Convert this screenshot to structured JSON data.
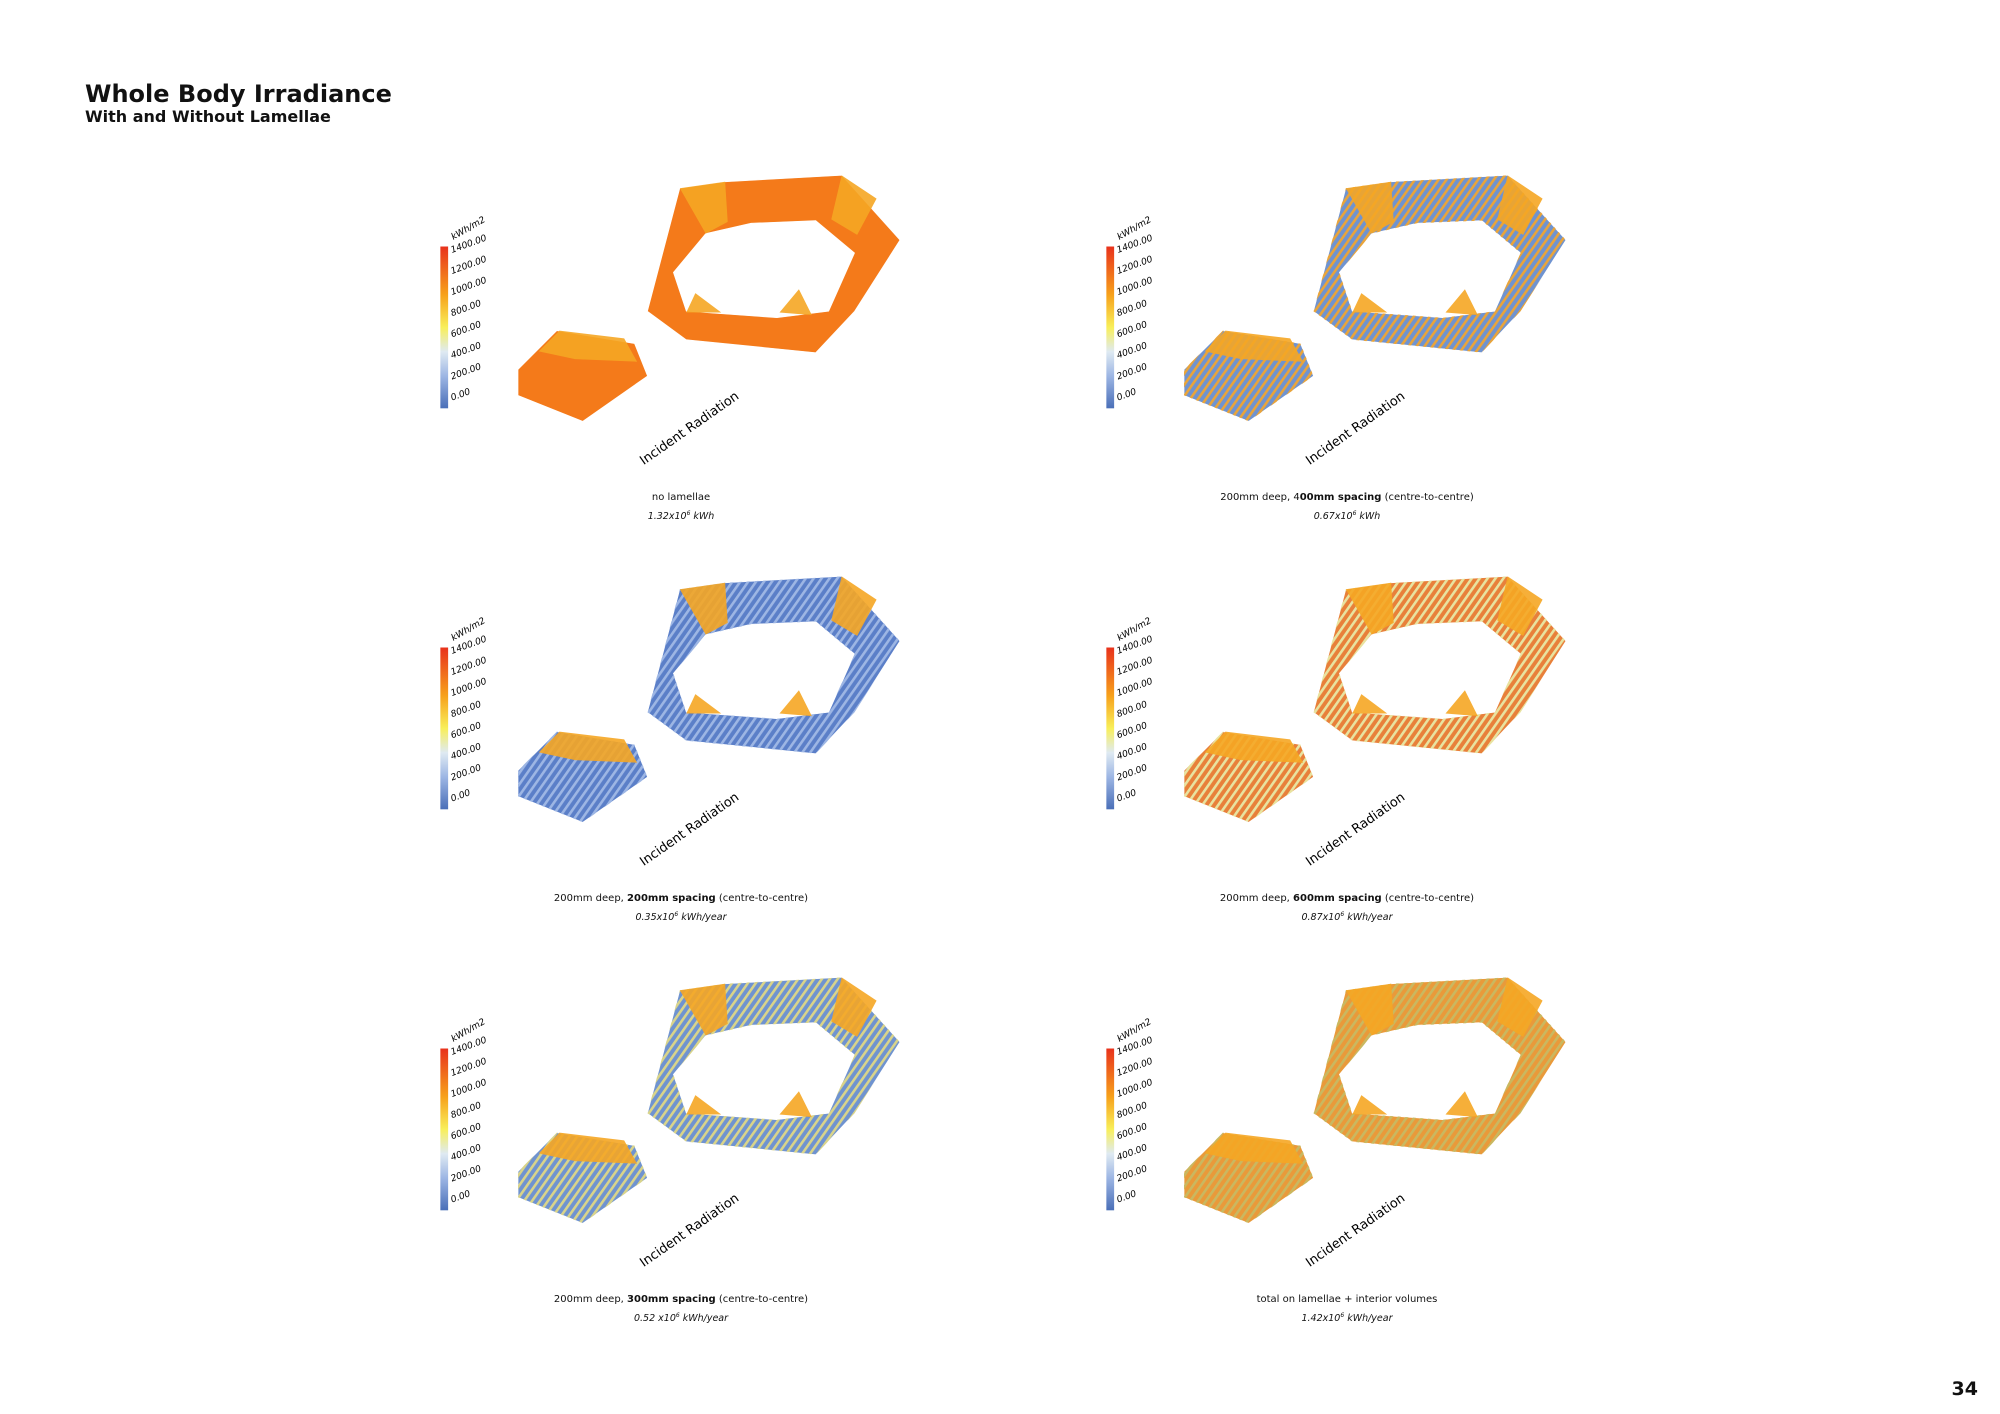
{
  "header": {
    "title": "Whole Body Irradiance",
    "subtitle": "With and Without Lamellae"
  },
  "page_number": "34",
  "legend": {
    "unit": "kWh/m2",
    "labels": [
      "1400.00",
      "1200.00",
      "1000.00",
      "800.00",
      "600.00",
      "400.00",
      "200.00",
      "0.00"
    ]
  },
  "panels": [
    {
      "axis_label": "Incident Radiation",
      "fill": "#f47a1a",
      "stripe": null,
      "caption": [
        {
          "text": "no lamellae"
        }
      ],
      "value": {
        "base": "1.32x10",
        "exp": "6",
        "unit": "kWh"
      }
    },
    {
      "axis_label": "Incident Radiation",
      "fill": "#6f93d0",
      "stripe": "#e9a43a",
      "caption": [
        {
          "text": "200mm deep, 4"
        },
        {
          "text": "00mm spacing",
          "bold": true
        },
        {
          "text": " (centre-to-centre)"
        }
      ],
      "value": {
        "base": "0.67x10",
        "exp": "6",
        "unit": "kWh"
      }
    },
    {
      "axis_label": "Incident Radiation",
      "fill": "#5b7fc8",
      "stripe": "#9db6e4",
      "caption": [
        {
          "text": "200mm deep, "
        },
        {
          "text": "200mm spacing",
          "bold": true
        },
        {
          "text": " (centre-to-centre)"
        }
      ],
      "value": {
        "base": "0.35x10",
        "exp": "6",
        "unit": "kWh/year"
      }
    },
    {
      "axis_label": "Incident Radiation",
      "fill": "#e8803a",
      "stripe": "#e8e3a0",
      "caption": [
        {
          "text": "200mm deep, "
        },
        {
          "text": "600mm spacing",
          "bold": true
        },
        {
          "text": " (centre-to-centre)"
        }
      ],
      "value": {
        "base": "0.87x10",
        "exp": "6",
        "unit": "kWh/year"
      }
    },
    {
      "axis_label": "Incident Radiation",
      "fill": "#6f93d0",
      "stripe": "#d9d48a",
      "caption": [
        {
          "text": "200mm deep, "
        },
        {
          "text": "300mm spacing",
          "bold": true
        },
        {
          "text": " (centre-to-centre)"
        }
      ],
      "value": {
        "base": "0.52 x10",
        "exp": "6",
        "unit": "kWh/year"
      }
    },
    {
      "axis_label": "Incident Radiation",
      "fill": "#e99a3a",
      "stripe": "#c9b860",
      "caption": [
        {
          "text": "total on lamellae + interior volumes"
        }
      ],
      "value": {
        "base": "1.42x10",
        "exp": "6",
        "unit": "kWh/year"
      }
    }
  ]
}
